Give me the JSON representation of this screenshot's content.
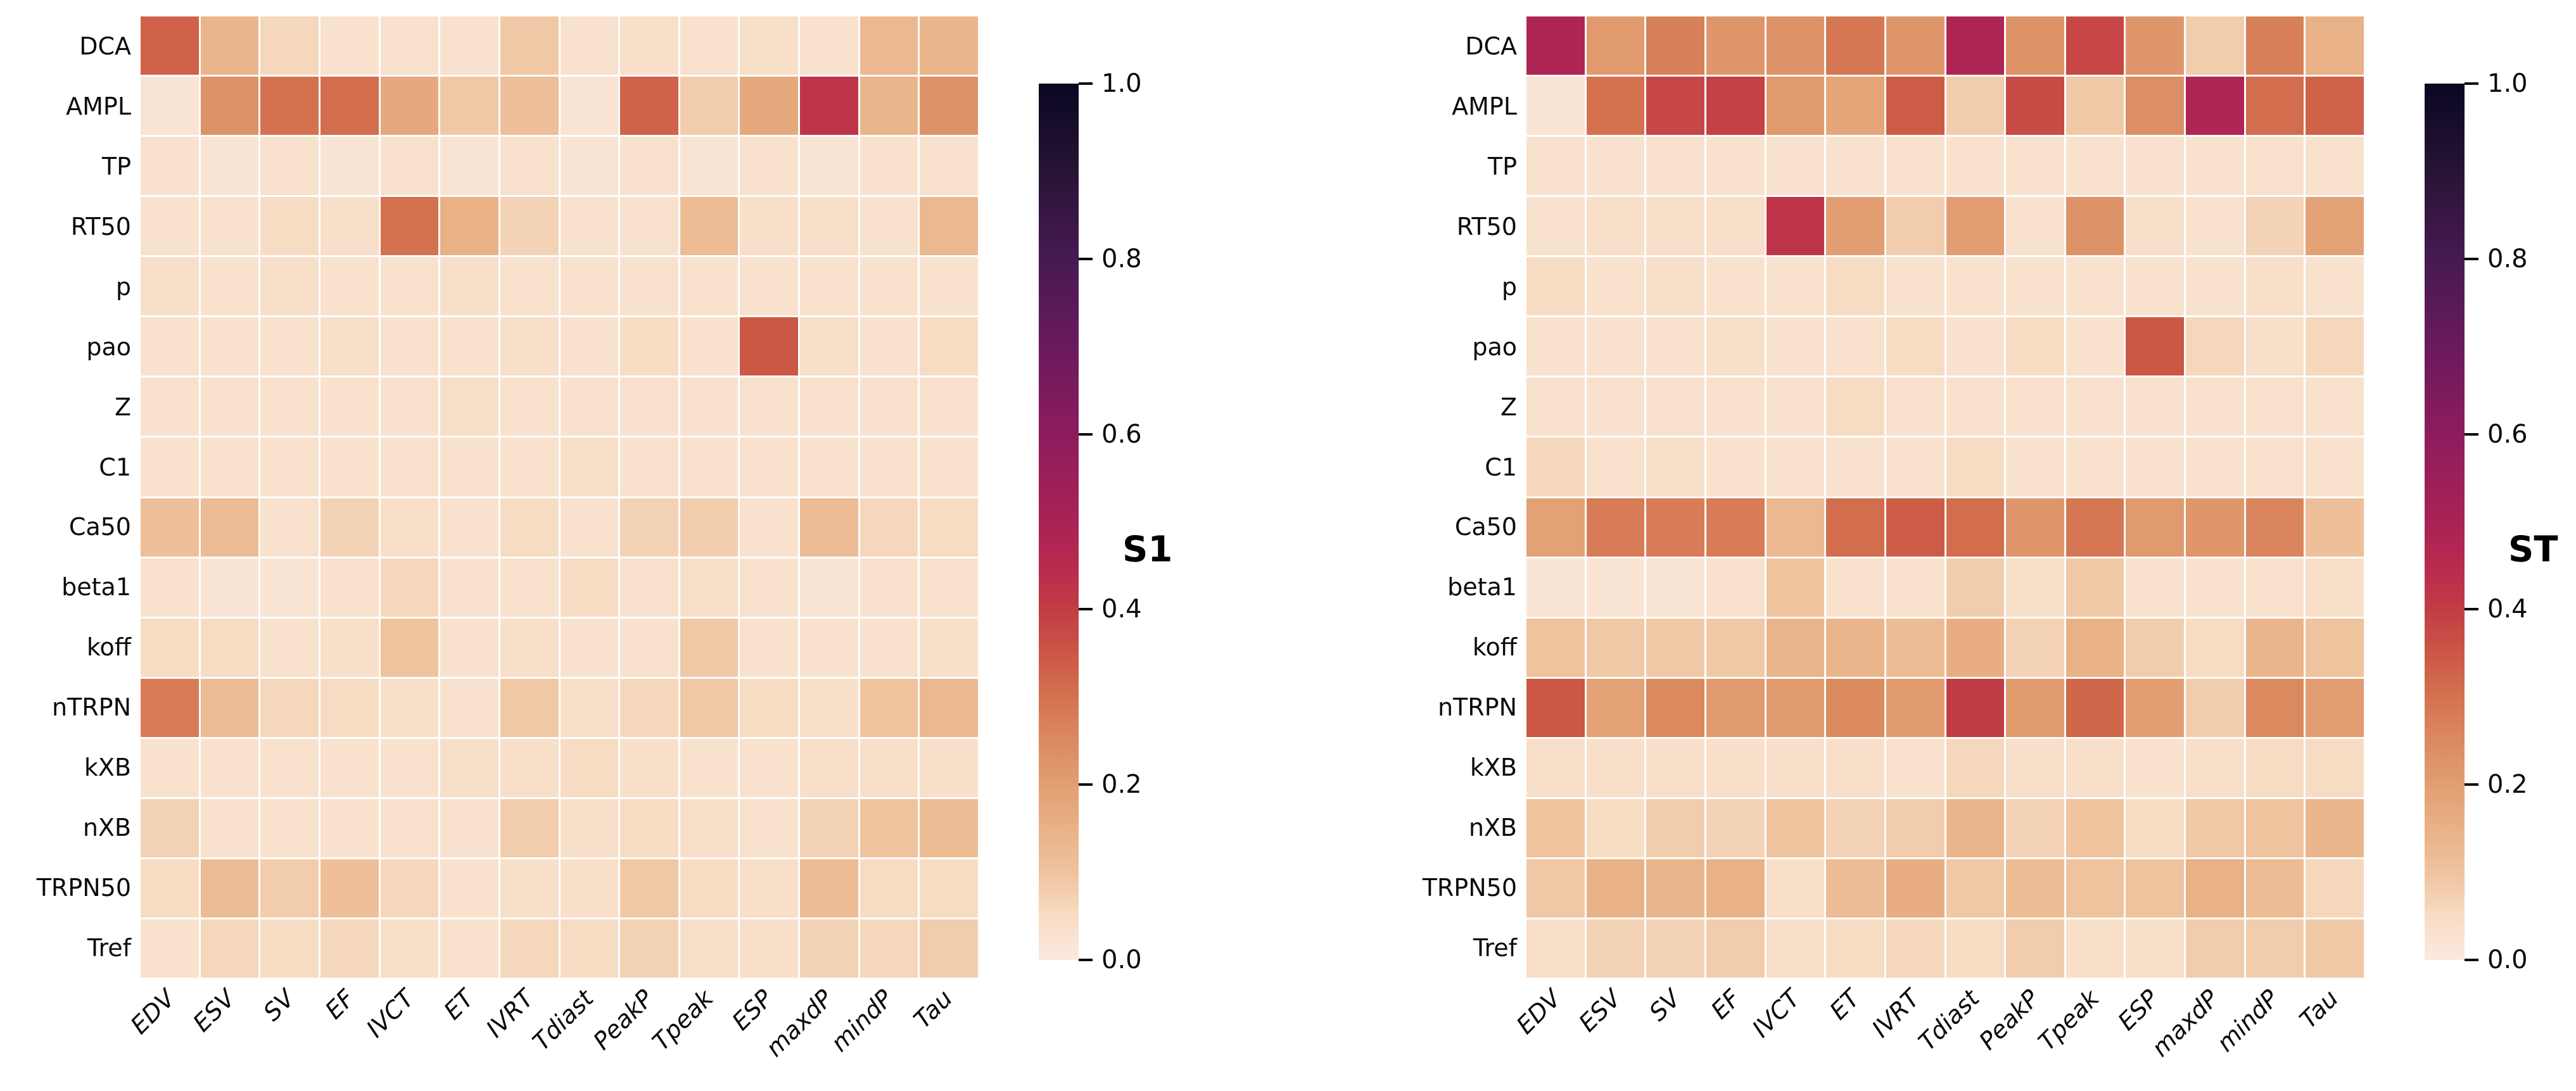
{
  "figure": {
    "background_color": "#ffffff",
    "text_color": "#0a0a0a"
  },
  "colormap": {
    "name": "rocket_r",
    "stops": [
      [
        0.0,
        "#faeade"
      ],
      [
        0.05,
        "#f7dcc4"
      ],
      [
        0.1,
        "#efc39e"
      ],
      [
        0.15,
        "#e9b186"
      ],
      [
        0.2,
        "#e29e72"
      ],
      [
        0.25,
        "#db8a60"
      ],
      [
        0.3,
        "#d4724f"
      ],
      [
        0.35,
        "#cb5745"
      ],
      [
        0.4,
        "#c23c45"
      ],
      [
        0.45,
        "#b82a4e"
      ],
      [
        0.5,
        "#a92256"
      ],
      [
        0.6,
        "#8d1c5d"
      ],
      [
        0.7,
        "#691a5d"
      ],
      [
        0.8,
        "#471a52"
      ],
      [
        0.9,
        "#271435"
      ],
      [
        1.0,
        "#0a0722"
      ]
    ]
  },
  "chart_data": [
    {
      "type": "heatmap",
      "label": "S1",
      "colormap": "rocket_r",
      "vmin": 0.0,
      "vmax": 1.0,
      "colorbar_ticks": [
        "0.0",
        "0.2",
        "0.4",
        "0.6",
        "0.8",
        "1.0"
      ],
      "rows": [
        "DCA",
        "AMPL",
        "TP",
        "RT50",
        "p",
        "pao",
        "Z",
        "C1",
        "Ca50",
        "beta1",
        "koff",
        "nTRPN",
        "kXB",
        "nXB",
        "TRPN50",
        "Tref"
      ],
      "columns": [
        "EDV",
        "ESV",
        "SV",
        "EF",
        "IVCT",
        "ET",
        "IVRT",
        "Tdiast",
        "PeakP",
        "Tpeak",
        "ESP",
        "maxdP",
        "mindP",
        "Tau"
      ],
      "values": [
        [
          0.33,
          0.14,
          0.06,
          0.03,
          0.03,
          0.03,
          0.09,
          0.03,
          0.04,
          0.03,
          0.04,
          0.03,
          0.13,
          0.14
        ],
        [
          0.02,
          0.23,
          0.3,
          0.31,
          0.17,
          0.09,
          0.11,
          0.02,
          0.33,
          0.08,
          0.17,
          0.42,
          0.14,
          0.23
        ],
        [
          0.03,
          0.02,
          0.03,
          0.02,
          0.03,
          0.02,
          0.03,
          0.02,
          0.03,
          0.02,
          0.03,
          0.02,
          0.03,
          0.03
        ],
        [
          0.03,
          0.03,
          0.05,
          0.04,
          0.3,
          0.15,
          0.07,
          0.03,
          0.03,
          0.12,
          0.04,
          0.04,
          0.03,
          0.13
        ],
        [
          0.04,
          0.03,
          0.04,
          0.03,
          0.03,
          0.04,
          0.03,
          0.03,
          0.03,
          0.03,
          0.03,
          0.03,
          0.03,
          0.03
        ],
        [
          0.03,
          0.03,
          0.03,
          0.04,
          0.03,
          0.03,
          0.04,
          0.03,
          0.05,
          0.03,
          0.35,
          0.04,
          0.03,
          0.05
        ],
        [
          0.03,
          0.03,
          0.03,
          0.03,
          0.03,
          0.04,
          0.03,
          0.03,
          0.03,
          0.03,
          0.03,
          0.03,
          0.03,
          0.03
        ],
        [
          0.03,
          0.03,
          0.03,
          0.03,
          0.03,
          0.03,
          0.03,
          0.04,
          0.03,
          0.03,
          0.03,
          0.03,
          0.03,
          0.03
        ],
        [
          0.11,
          0.12,
          0.03,
          0.07,
          0.04,
          0.03,
          0.05,
          0.03,
          0.07,
          0.08,
          0.03,
          0.12,
          0.06,
          0.05
        ],
        [
          0.03,
          0.02,
          0.02,
          0.03,
          0.06,
          0.03,
          0.03,
          0.05,
          0.03,
          0.04,
          0.03,
          0.02,
          0.03,
          0.03
        ],
        [
          0.05,
          0.05,
          0.03,
          0.04,
          0.1,
          0.03,
          0.04,
          0.03,
          0.03,
          0.09,
          0.03,
          0.03,
          0.03,
          0.04
        ],
        [
          0.28,
          0.12,
          0.06,
          0.05,
          0.04,
          0.03,
          0.09,
          0.04,
          0.06,
          0.09,
          0.05,
          0.04,
          0.1,
          0.13
        ],
        [
          0.03,
          0.03,
          0.03,
          0.03,
          0.03,
          0.04,
          0.04,
          0.05,
          0.04,
          0.03,
          0.03,
          0.04,
          0.04,
          0.04
        ],
        [
          0.07,
          0.03,
          0.03,
          0.03,
          0.03,
          0.03,
          0.08,
          0.04,
          0.05,
          0.04,
          0.03,
          0.07,
          0.1,
          0.12
        ],
        [
          0.05,
          0.12,
          0.08,
          0.11,
          0.06,
          0.03,
          0.04,
          0.04,
          0.09,
          0.05,
          0.04,
          0.12,
          0.05,
          0.05
        ],
        [
          0.03,
          0.06,
          0.05,
          0.06,
          0.04,
          0.03,
          0.06,
          0.05,
          0.07,
          0.04,
          0.04,
          0.07,
          0.06,
          0.08
        ]
      ]
    },
    {
      "type": "heatmap",
      "label": "ST",
      "colormap": "rocket_r",
      "vmin": 0.0,
      "vmax": 1.0,
      "colorbar_ticks": [
        "0.0",
        "0.2",
        "0.4",
        "0.6",
        "0.8",
        "1.0"
      ],
      "rows": [
        "DCA",
        "AMPL",
        "TP",
        "RT50",
        "p",
        "pao",
        "Z",
        "C1",
        "Ca50",
        "beta1",
        "koff",
        "nTRPN",
        "kXB",
        "nXB",
        "TRPN50",
        "Tref"
      ],
      "columns": [
        "EDV",
        "ESV",
        "SV",
        "EF",
        "IVCT",
        "ET",
        "IVRT",
        "Tdiast",
        "PeakP",
        "Tpeak",
        "ESP",
        "maxdP",
        "mindP",
        "Tau"
      ],
      "values": [
        [
          0.48,
          0.21,
          0.27,
          0.22,
          0.23,
          0.29,
          0.22,
          0.48,
          0.23,
          0.38,
          0.22,
          0.08,
          0.27,
          0.15
        ],
        [
          0.02,
          0.3,
          0.38,
          0.39,
          0.21,
          0.18,
          0.34,
          0.08,
          0.37,
          0.09,
          0.24,
          0.48,
          0.31,
          0.33
        ],
        [
          0.03,
          0.03,
          0.03,
          0.03,
          0.03,
          0.03,
          0.03,
          0.03,
          0.03,
          0.03,
          0.03,
          0.03,
          0.03,
          0.03
        ],
        [
          0.03,
          0.04,
          0.04,
          0.04,
          0.42,
          0.2,
          0.08,
          0.2,
          0.03,
          0.23,
          0.04,
          0.03,
          0.07,
          0.19
        ],
        [
          0.05,
          0.03,
          0.04,
          0.03,
          0.03,
          0.05,
          0.03,
          0.03,
          0.03,
          0.03,
          0.03,
          0.03,
          0.04,
          0.03
        ],
        [
          0.03,
          0.03,
          0.03,
          0.04,
          0.03,
          0.03,
          0.05,
          0.03,
          0.05,
          0.03,
          0.35,
          0.06,
          0.04,
          0.06
        ],
        [
          0.03,
          0.03,
          0.03,
          0.03,
          0.03,
          0.05,
          0.03,
          0.03,
          0.03,
          0.03,
          0.03,
          0.03,
          0.03,
          0.03
        ],
        [
          0.06,
          0.03,
          0.04,
          0.03,
          0.03,
          0.03,
          0.03,
          0.05,
          0.03,
          0.03,
          0.03,
          0.03,
          0.03,
          0.03
        ],
        [
          0.19,
          0.28,
          0.28,
          0.28,
          0.13,
          0.31,
          0.34,
          0.31,
          0.22,
          0.29,
          0.21,
          0.22,
          0.26,
          0.11
        ],
        [
          0.02,
          0.02,
          0.02,
          0.03,
          0.1,
          0.03,
          0.03,
          0.08,
          0.04,
          0.09,
          0.03,
          0.03,
          0.03,
          0.04
        ],
        [
          0.1,
          0.09,
          0.09,
          0.09,
          0.14,
          0.14,
          0.12,
          0.16,
          0.07,
          0.15,
          0.08,
          0.05,
          0.14,
          0.1
        ],
        [
          0.35,
          0.19,
          0.25,
          0.21,
          0.21,
          0.25,
          0.21,
          0.4,
          0.21,
          0.32,
          0.2,
          0.08,
          0.25,
          0.2
        ],
        [
          0.04,
          0.04,
          0.04,
          0.04,
          0.04,
          0.04,
          0.03,
          0.06,
          0.04,
          0.04,
          0.03,
          0.04,
          0.05,
          0.05
        ],
        [
          0.1,
          0.05,
          0.08,
          0.07,
          0.1,
          0.07,
          0.08,
          0.14,
          0.07,
          0.1,
          0.05,
          0.09,
          0.1,
          0.14
        ],
        [
          0.09,
          0.15,
          0.14,
          0.15,
          0.04,
          0.12,
          0.16,
          0.09,
          0.12,
          0.1,
          0.1,
          0.15,
          0.12,
          0.06
        ],
        [
          0.04,
          0.07,
          0.07,
          0.08,
          0.04,
          0.05,
          0.06,
          0.05,
          0.08,
          0.04,
          0.04,
          0.08,
          0.08,
          0.09
        ]
      ]
    }
  ]
}
